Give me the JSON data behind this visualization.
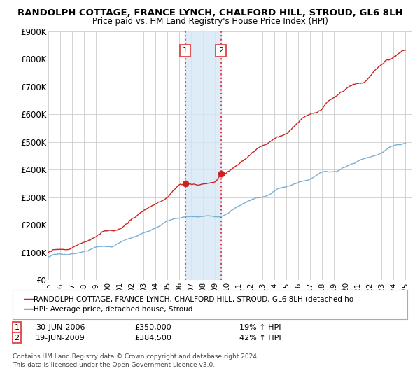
{
  "title": "RANDOLPH COTTAGE, FRANCE LYNCH, CHALFORD HILL, STROUD, GL6 8LH",
  "subtitle": "Price paid vs. HM Land Registry's House Price Index (HPI)",
  "ylim": [
    0,
    900000
  ],
  "yticks": [
    0,
    100000,
    200000,
    300000,
    400000,
    500000,
    600000,
    700000,
    800000,
    900000
  ],
  "ytick_labels": [
    "£0",
    "£100K",
    "£200K",
    "£300K",
    "£400K",
    "£500K",
    "£600K",
    "£700K",
    "£800K",
    "£900K"
  ],
  "purchase1_year": 2006.5,
  "purchase1_price": 350000,
  "purchase2_year": 2009.5,
  "purchase2_price": 384500,
  "purchase1_date": "30-JUN-2006",
  "purchase1_hpi_text": "19% ↑ HPI",
  "purchase1_price_text": "£350,000",
  "purchase2_date": "19-JUN-2009",
  "purchase2_hpi_text": "42% ↑ HPI",
  "purchase2_price_text": "£384,500",
  "hpi_color": "#7bafd4",
  "property_color": "#cc2222",
  "shade_color": "#d6e8f7",
  "vline_color": "#dd4444",
  "legend_property": "RANDOLPH COTTAGE, FRANCE LYNCH, CHALFORD HILL, STROUD, GL6 8LH (detached ho",
  "legend_hpi": "HPI: Average price, detached house, Stroud",
  "footer1": "Contains HM Land Registry data © Crown copyright and database right 2024.",
  "footer2": "This data is licensed under the Open Government Licence v3.0.",
  "background_color": "#ffffff",
  "grid_color": "#cccccc"
}
